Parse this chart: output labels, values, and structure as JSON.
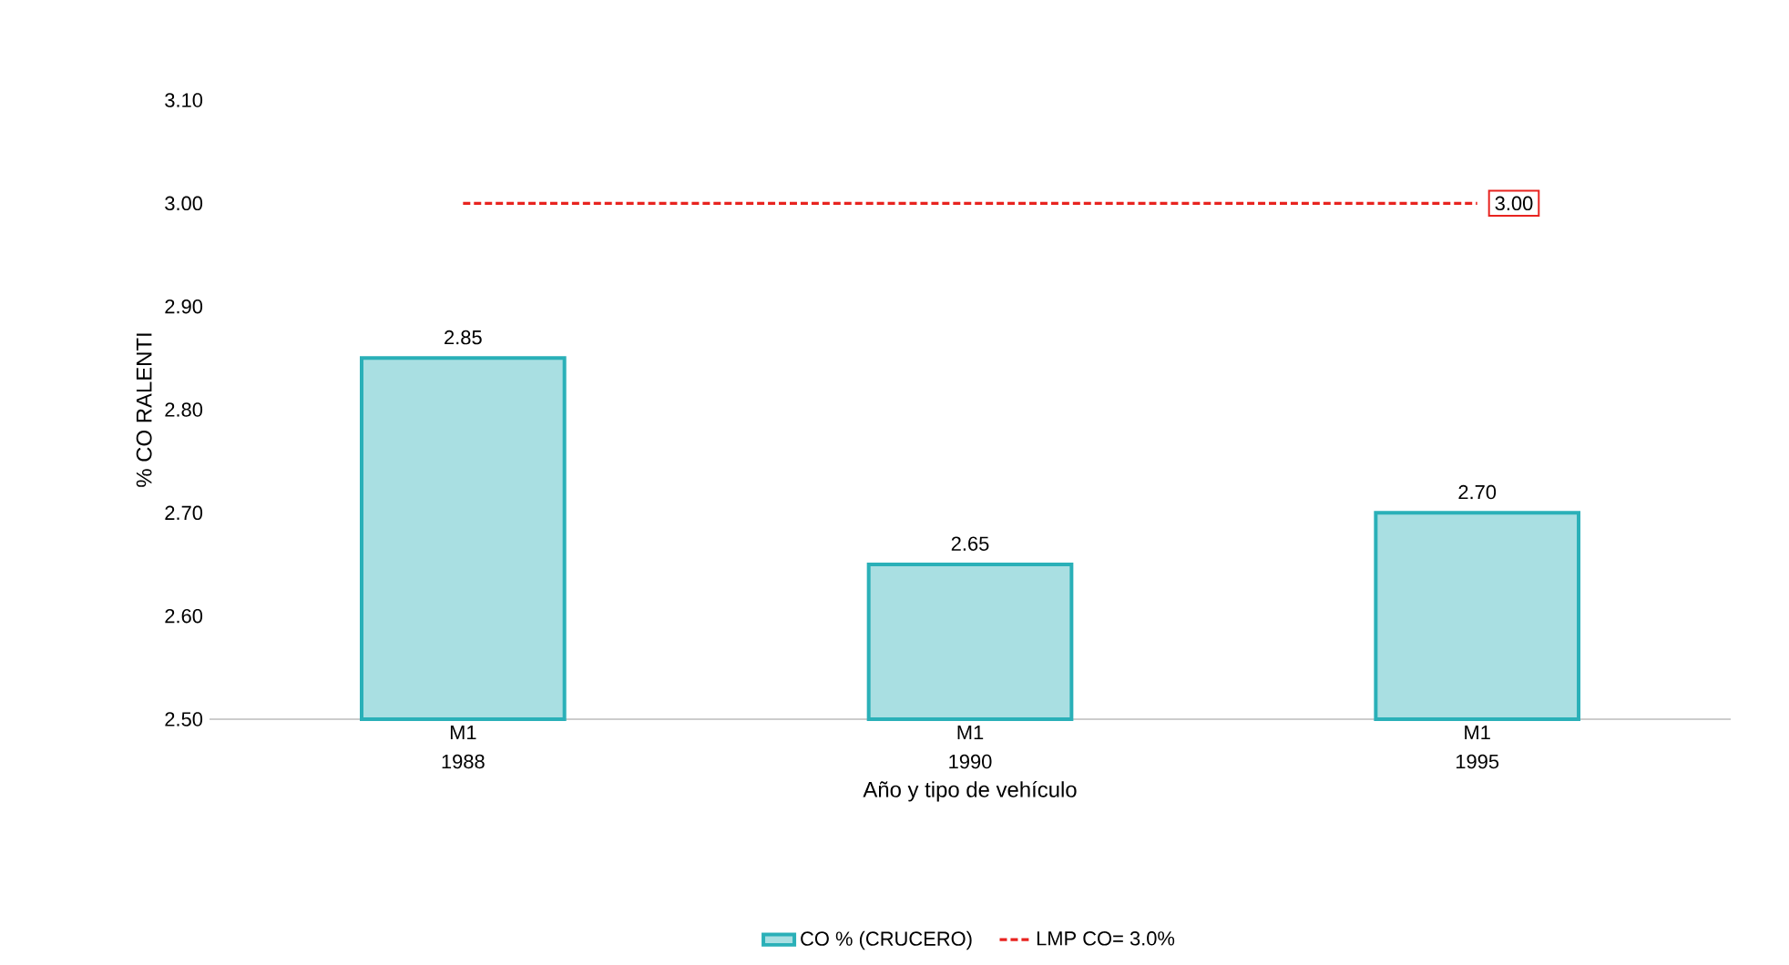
{
  "chart_data": {
    "type": "bar",
    "xlabel": "Año y tipo de vehículo",
    "ylabel": "% CO RALENTI",
    "categories": [
      "M1 1988",
      "M1 1990",
      "M1 1995"
    ],
    "series": [
      {
        "name": "CO % (CRUCERO)",
        "color": "#2ab0b8",
        "values": [
          2.85,
          2.65,
          2.7
        ],
        "value_labels": [
          "2.85",
          "2.65",
          "2.70"
        ]
      },
      {
        "name": "LMP CO= 3.0%",
        "type": "line",
        "color": "#e8231f",
        "line_style": "dashed",
        "marker": "none",
        "values": [
          3.0,
          3.0,
          3.0
        ],
        "value_labels": [
          null,
          null,
          "3.00"
        ]
      }
    ],
    "ylim": [
      2.5,
      3.1
    ],
    "yticks": [
      {
        "value": 2.5,
        "label": "2.50"
      },
      {
        "value": 2.6,
        "label": "2.60"
      },
      {
        "value": 2.7,
        "label": "2.70"
      },
      {
        "value": 2.8,
        "label": "2.80"
      },
      {
        "value": 2.9,
        "label": "2.90"
      },
      {
        "value": 3.0,
        "label": "3.00"
      },
      {
        "value": 3.1,
        "label": "3.10"
      }
    ],
    "grid": false,
    "legend": "bottom"
  }
}
